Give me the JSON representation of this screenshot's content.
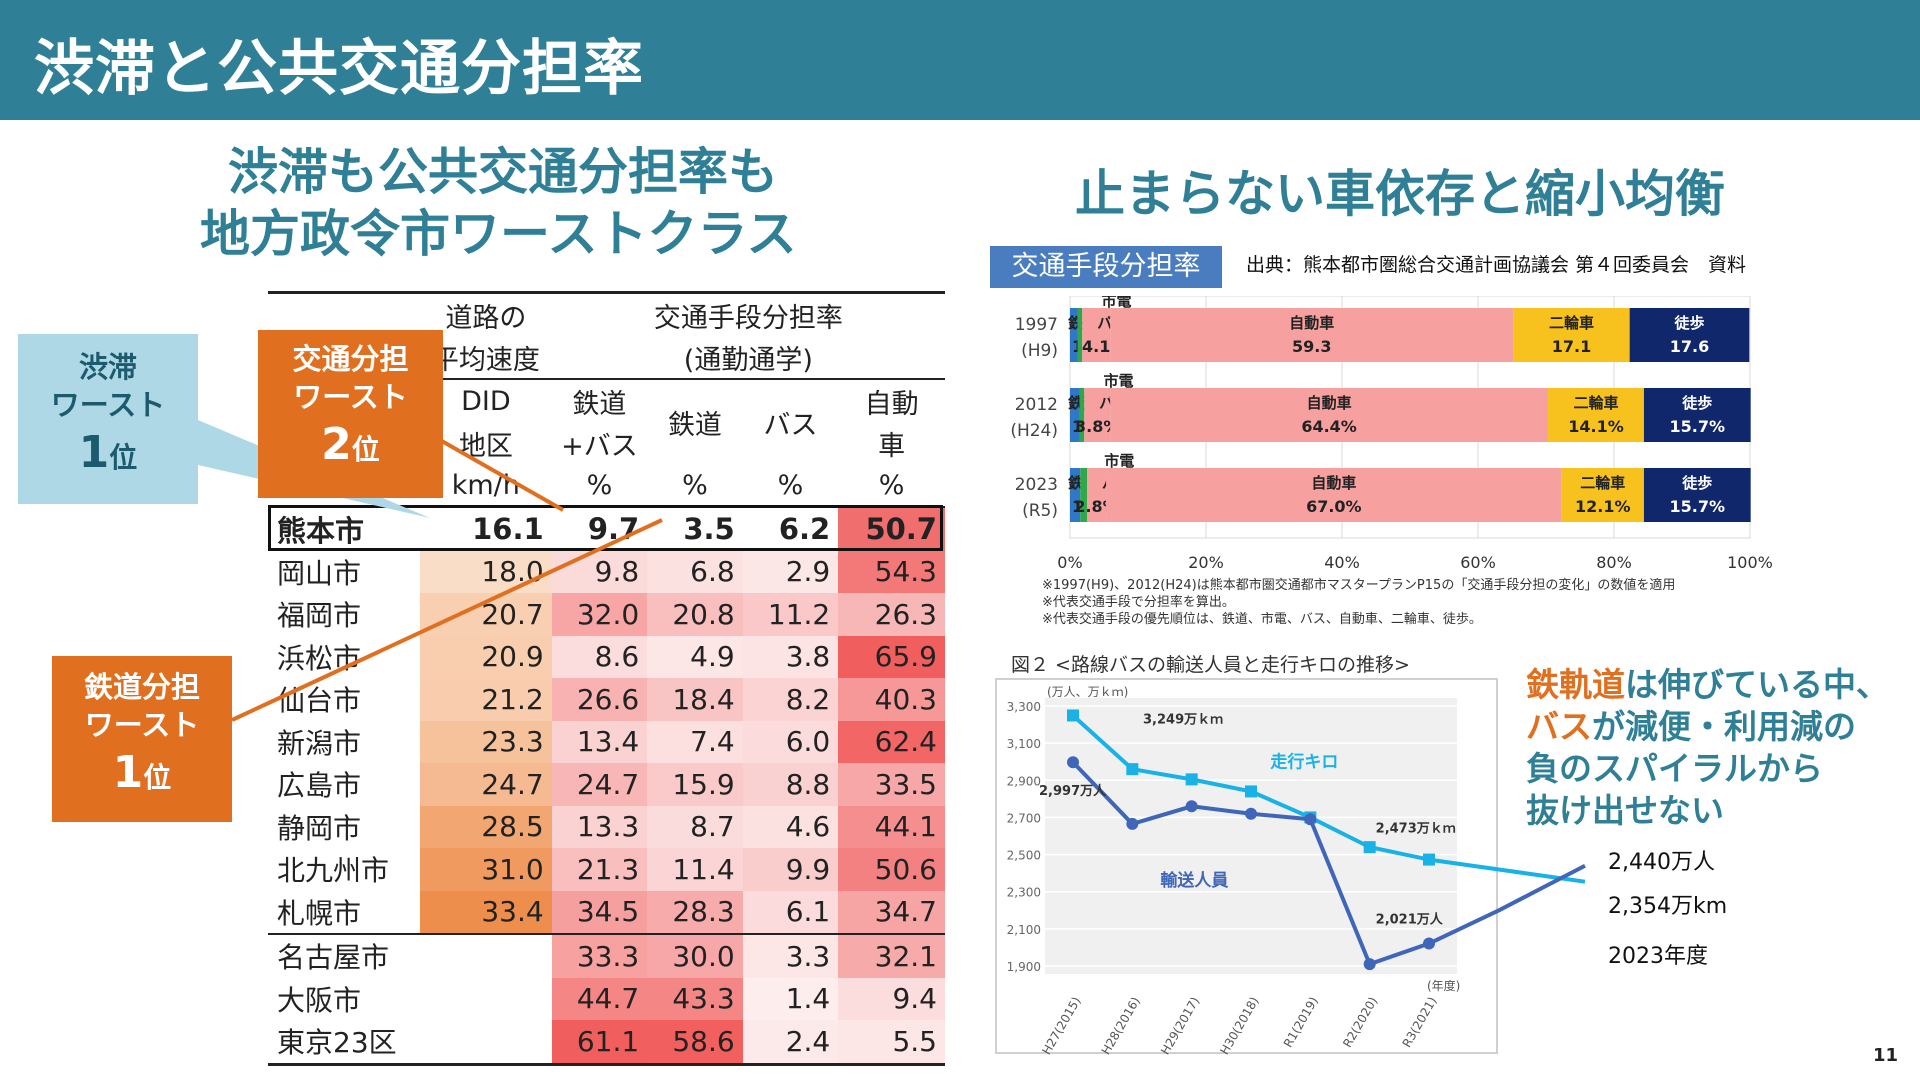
{
  "header": {
    "title": "渋滞と公共交通分担率"
  },
  "left_heading": {
    "line1": "渋滞も公共交通分担率も",
    "line2": "地方政令市ワーストクラス"
  },
  "right_heading": "止まらない車依存と縮小均衡",
  "callouts": {
    "congestion": {
      "line1": "渋滞",
      "line2": "ワースト",
      "rank": "1",
      "rank_suffix": "位"
    },
    "transit_share": {
      "line1": "交通分担",
      "line2": "ワースト",
      "rank": "2",
      "rank_suffix": "位"
    },
    "rail_share": {
      "line1": "鉄道分担",
      "line2": "ワースト",
      "rank": "1",
      "rank_suffix": "位"
    }
  },
  "table": {
    "head": {
      "speed_group_1": "道路の",
      "speed_group_2": "平均速度",
      "share_group_1": "交通手段分担率",
      "share_group_2": "(通勤通学)",
      "did_1": "DID",
      "did_2": "地区",
      "did_unit": "km/h",
      "railbus_1": "鉄道",
      "railbus_2": "+バス",
      "railbus_unit": "%",
      "rail": "鉄道",
      "rail_unit": "%",
      "bus": "バス",
      "bus_unit": "%",
      "car_1": "自動",
      "car_2": "車",
      "car_unit": "%"
    },
    "rows": [
      {
        "city": "熊本市",
        "speed": "16.1",
        "railbus": "9.7",
        "rail": "3.5",
        "bus": "6.2",
        "car": "50.7"
      },
      {
        "city": "岡山市",
        "speed": "18.0",
        "railbus": "9.8",
        "rail": "6.8",
        "bus": "2.9",
        "car": "54.3"
      },
      {
        "city": "福岡市",
        "speed": "20.7",
        "railbus": "32.0",
        "rail": "20.8",
        "bus": "11.2",
        "car": "26.3"
      },
      {
        "city": "浜松市",
        "speed": "20.9",
        "railbus": "8.6",
        "rail": "4.9",
        "bus": "3.8",
        "car": "65.9"
      },
      {
        "city": "仙台市",
        "speed": "21.2",
        "railbus": "26.6",
        "rail": "18.4",
        "bus": "8.2",
        "car": "40.3"
      },
      {
        "city": "新潟市",
        "speed": "23.3",
        "railbus": "13.4",
        "rail": "7.4",
        "bus": "6.0",
        "car": "62.4"
      },
      {
        "city": "広島市",
        "speed": "24.7",
        "railbus": "24.7",
        "rail": "15.9",
        "bus": "8.8",
        "car": "33.5"
      },
      {
        "city": "静岡市",
        "speed": "28.5",
        "railbus": "13.3",
        "rail": "8.7",
        "bus": "4.6",
        "car": "44.1"
      },
      {
        "city": "北九州市",
        "speed": "31.0",
        "railbus": "21.3",
        "rail": "11.4",
        "bus": "9.9",
        "car": "50.6"
      },
      {
        "city": "札幌市",
        "speed": "33.4",
        "railbus": "34.5",
        "rail": "28.3",
        "bus": "6.1",
        "car": "34.7"
      },
      {
        "city": "名古屋市",
        "speed": "",
        "railbus": "33.3",
        "rail": "30.0",
        "bus": "3.3",
        "car": "32.1"
      },
      {
        "city": "大阪市",
        "speed": "",
        "railbus": "44.7",
        "rail": "43.3",
        "bus": "1.4",
        "car": "9.4"
      },
      {
        "city": "東京23区",
        "speed": "",
        "railbus": "61.1",
        "rail": "58.6",
        "bus": "2.4",
        "car": "5.5"
      }
    ]
  },
  "chart1": {
    "label": "交通手段分担率",
    "source": "出典：熊本都市圏総合交通計画協議会 第４回委員会　資料",
    "notes": [
      "※1997(H9)、2012(H24)は熊本都市圏交通都市マスタープランP15の「交通手段分担の変化」の数値を適用",
      "※代表交通手段で分担率を算出。",
      "※代表交通手段の優先順位は、鉄道、市電、バス、自動車、二輪車、徒歩。"
    ],
    "colors": {
      "rail": "#2e78c7",
      "tram": "#2ea84a",
      "bus": "#f6a0a0",
      "car": "#f6a0a0",
      "bike": "#f7c21e",
      "walk": "#10276b"
    }
  },
  "chart2": {
    "title": "図２ <路線バスの輸送人員と走行キロの推移>",
    "annotations": {
      "km_start": "3,249万ｋｍ",
      "km_end": "2,473万ｋｍ",
      "pax_start": "2,997万人",
      "pax_end": "2,021万人",
      "km_series": "走行キロ",
      "pax_series": "輸送人員"
    }
  },
  "chart_data": [
    {
      "type": "bar",
      "stacked": true,
      "orientation": "horizontal",
      "categories": [
        "1997\n(H9)",
        "2012\n(H24)",
        "2023\n(R5)"
      ],
      "series": [
        {
          "name": "鉄道",
          "values": [
            1.1,
            1.4,
            1.5
          ],
          "labels": [
            "1.1",
            "1.4%",
            "1.5%"
          ]
        },
        {
          "name": "市電",
          "values": [
            0.7,
            0.7,
            1.0
          ],
          "labels": [
            "0.7",
            "0.7%",
            "1.0%"
          ]
        },
        {
          "name": "バス",
          "values": [
            4.1,
            3.8,
            2.8
          ],
          "labels": [
            "4.1",
            "3.8%",
            "2.8%"
          ]
        },
        {
          "name": "自動車",
          "values": [
            59.3,
            64.4,
            67.0
          ],
          "labels": [
            "59.3",
            "64.4%",
            "67.0%"
          ]
        },
        {
          "name": "二輪車",
          "values": [
            17.1,
            14.1,
            12.1
          ],
          "labels": [
            "17.1",
            "14.1%",
            "12.1%"
          ]
        },
        {
          "name": "徒歩",
          "values": [
            17.6,
            15.7,
            15.7
          ],
          "labels": [
            "17.6",
            "15.7%",
            "15.7%"
          ]
        }
      ],
      "xlim": [
        0,
        100
      ],
      "x_ticks": [
        "0%",
        "20%",
        "40%",
        "60%",
        "80%",
        "100%"
      ],
      "grid": true
    },
    {
      "type": "line",
      "x": [
        "H27(2015)",
        "H28(2016)",
        "H29(2017)",
        "H30(2018)",
        "R1(2019)",
        "R2(2020)",
        "R3(2021)"
      ],
      "xlabel": "(年度)",
      "ylabel": "(万人、万ｋｍ)",
      "ylim": [
        1900,
        3300
      ],
      "y_ticks": [
        "3,300",
        "3,100",
        "2,900",
        "2,700",
        "2,500",
        "2,300",
        "2,100",
        "1,900"
      ],
      "grid": true,
      "series": [
        {
          "name": "走行キロ",
          "values": [
            3249,
            2960,
            2905,
            2840,
            2700,
            2540,
            2473
          ]
        },
        {
          "name": "輸送人員",
          "values": [
            2997,
            2665,
            2760,
            2720,
            2690,
            1910,
            2021
          ]
        }
      ],
      "extension": {
        "label_year": "2023年度",
        "km_value": "2,354万km",
        "pax_value": "2,440万人",
        "km_2023": 2354,
        "pax_2023": 2440
      }
    }
  ],
  "page_number": "11"
}
